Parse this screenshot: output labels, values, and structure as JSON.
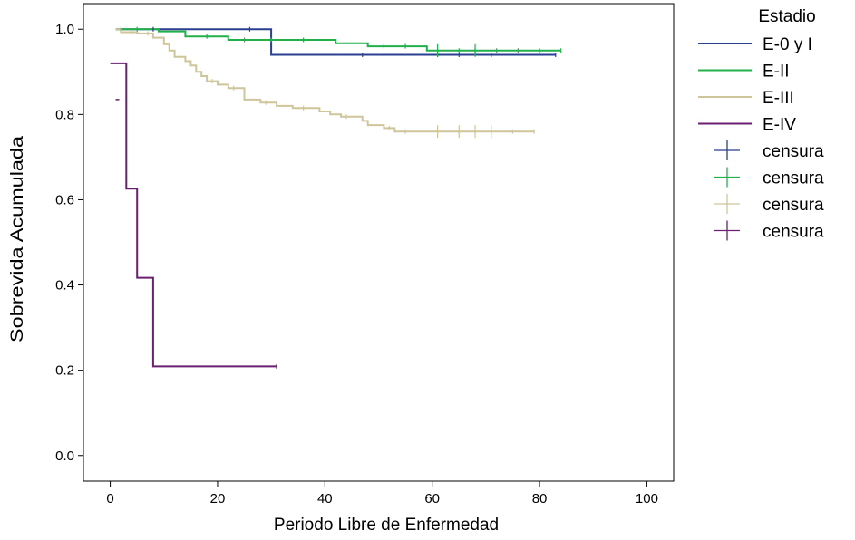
{
  "chart_data": {
    "type": "line",
    "step": true,
    "title": "",
    "xlabel": "Periodo Libre de Enfermedad",
    "ylabel": "Sobrevida Acumulada",
    "xlim": [
      -5,
      105
    ],
    "ylim": [
      -0.06,
      1.06
    ],
    "x_ticks": [
      0,
      20,
      40,
      60,
      80,
      100
    ],
    "x_tick_labels": [
      "0",
      "20",
      "40",
      "60",
      "80",
      "100"
    ],
    "y_ticks": [
      0.0,
      0.2,
      0.4,
      0.6,
      0.8,
      1.0
    ],
    "y_tick_labels": [
      "0.0",
      "0.2",
      "0.4",
      "0.6",
      "0.8",
      "1.0"
    ],
    "grid": false,
    "legend": {
      "title": "Estadio",
      "placement": "right",
      "entries": [
        {
          "label": "E-0 y I",
          "kind": "line",
          "color": "#2a3f8f"
        },
        {
          "label": "E-II",
          "kind": "line",
          "color": "#22b04a"
        },
        {
          "label": "E-III",
          "kind": "line",
          "color": "#cfc59a"
        },
        {
          "label": "E-IV",
          "kind": "line",
          "color": "#6a2070"
        },
        {
          "label": "censura",
          "kind": "censor",
          "color": "#2a3f8f"
        },
        {
          "label": "censura",
          "kind": "censor",
          "color": "#22b04a"
        },
        {
          "label": "censura",
          "kind": "censor",
          "color": "#cfc59a"
        },
        {
          "label": "censura",
          "kind": "censor",
          "color": "#6a2070"
        }
      ]
    },
    "series": [
      {
        "name": "E-0 y I",
        "color": "#2a3f8f",
        "points": [
          [
            1,
            1.0
          ],
          [
            30,
            1.0
          ],
          [
            30,
            0.94
          ],
          [
            83,
            0.94
          ]
        ],
        "censored": [
          [
            8,
            1.0
          ],
          [
            26,
            1.0
          ],
          [
            47,
            0.94
          ],
          [
            61,
            0.94
          ],
          [
            65,
            0.94
          ],
          [
            71,
            0.94
          ],
          [
            83,
            0.94
          ]
        ]
      },
      {
        "name": "E-II",
        "color": "#22b04a",
        "points": [
          [
            1,
            1.0
          ],
          [
            9,
            1.0
          ],
          [
            9,
            0.995
          ],
          [
            14,
            0.995
          ],
          [
            14,
            0.983
          ],
          [
            22,
            0.983
          ],
          [
            22,
            0.975
          ],
          [
            42,
            0.975
          ],
          [
            42,
            0.967
          ],
          [
            48,
            0.967
          ],
          [
            48,
            0.96
          ],
          [
            59,
            0.96
          ],
          [
            59,
            0.95
          ],
          [
            84,
            0.95
          ]
        ],
        "censored": [
          [
            2,
            1.0
          ],
          [
            5,
            1.0
          ],
          [
            18,
            0.983
          ],
          [
            25,
            0.975
          ],
          [
            30,
            0.975
          ],
          [
            36,
            0.975
          ],
          [
            51,
            0.96
          ],
          [
            55,
            0.96
          ],
          [
            61,
            0.95
          ],
          [
            65,
            0.95
          ],
          [
            68,
            0.95
          ],
          [
            72,
            0.95
          ],
          [
            76,
            0.95
          ],
          [
            80,
            0.95
          ],
          [
            84,
            0.95
          ]
        ],
        "censored_large": [
          [
            61,
            0.95
          ],
          [
            68,
            0.95
          ]
        ]
      },
      {
        "name": "E-III",
        "color": "#cfc59a",
        "points": [
          [
            1,
            1.0
          ],
          [
            2,
            1.0
          ],
          [
            2,
            0.993
          ],
          [
            5,
            0.993
          ],
          [
            5,
            0.99
          ],
          [
            8,
            0.99
          ],
          [
            8,
            0.98
          ],
          [
            10,
            0.98
          ],
          [
            10,
            0.965
          ],
          [
            11,
            0.965
          ],
          [
            11,
            0.95
          ],
          [
            12,
            0.95
          ],
          [
            12,
            0.935
          ],
          [
            14,
            0.935
          ],
          [
            14,
            0.925
          ],
          [
            15,
            0.925
          ],
          [
            15,
            0.915
          ],
          [
            16,
            0.915
          ],
          [
            16,
            0.9
          ],
          [
            17,
            0.9
          ],
          [
            17,
            0.89
          ],
          [
            18,
            0.89
          ],
          [
            18,
            0.878
          ],
          [
            20,
            0.878
          ],
          [
            20,
            0.87
          ],
          [
            22,
            0.87
          ],
          [
            22,
            0.862
          ],
          [
            25,
            0.862
          ],
          [
            25,
            0.835
          ],
          [
            28,
            0.835
          ],
          [
            28,
            0.828
          ],
          [
            31,
            0.828
          ],
          [
            31,
            0.82
          ],
          [
            34,
            0.82
          ],
          [
            34,
            0.815
          ],
          [
            39,
            0.815
          ],
          [
            39,
            0.807
          ],
          [
            41,
            0.807
          ],
          [
            41,
            0.8
          ],
          [
            43,
            0.8
          ],
          [
            43,
            0.795
          ],
          [
            47,
            0.795
          ],
          [
            47,
            0.785
          ],
          [
            48,
            0.785
          ],
          [
            48,
            0.775
          ],
          [
            51,
            0.775
          ],
          [
            51,
            0.768
          ],
          [
            53,
            0.768
          ],
          [
            53,
            0.76
          ],
          [
            79,
            0.76
          ]
        ],
        "censored": [
          [
            4,
            0.993
          ],
          [
            7,
            0.99
          ],
          [
            13,
            0.935
          ],
          [
            19,
            0.878
          ],
          [
            23,
            0.862
          ],
          [
            29,
            0.828
          ],
          [
            36,
            0.815
          ],
          [
            44,
            0.795
          ],
          [
            52,
            0.768
          ],
          [
            55,
            0.76
          ],
          [
            61,
            0.76
          ],
          [
            65,
            0.76
          ],
          [
            68,
            0.76
          ],
          [
            71,
            0.76
          ],
          [
            75,
            0.76
          ],
          [
            79,
            0.76
          ]
        ],
        "censored_large": [
          [
            61,
            0.76
          ],
          [
            65,
            0.76
          ],
          [
            68,
            0.76
          ],
          [
            71,
            0.76
          ]
        ]
      },
      {
        "name": "E-IV",
        "color": "#6a2070",
        "points": [
          [
            0,
            0.92
          ],
          [
            3,
            0.92
          ],
          [
            3,
            0.626
          ],
          [
            5,
            0.626
          ],
          [
            5,
            0.417
          ],
          [
            8,
            0.417
          ],
          [
            8,
            0.209
          ],
          [
            31,
            0.209
          ]
        ],
        "censored": [
          [
            31,
            0.209
          ]
        ]
      }
    ],
    "annotations": [
      {
        "x": 1,
        "y": 0.835,
        "color": "#6a2070",
        "kind": "censor-small"
      }
    ]
  }
}
